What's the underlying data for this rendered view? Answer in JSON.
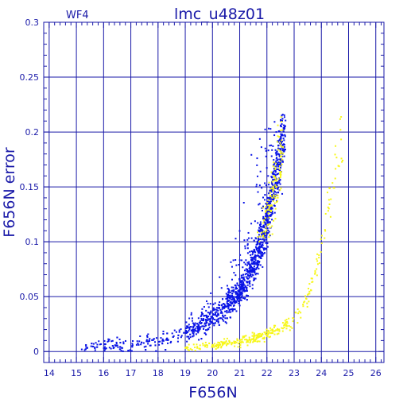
{
  "chart_data": {
    "type": "scatter",
    "title": "lmc_u48z01",
    "panel_label": "WF4",
    "xlabel": "F656N",
    "ylabel": "F656N error",
    "xlim": [
      13.8,
      26.3
    ],
    "ylim": [
      -0.01,
      0.3
    ],
    "grid": true,
    "x_ticks": [
      "14",
      "15",
      "16",
      "17",
      "18",
      "19",
      "20",
      "21",
      "22",
      "23",
      "24",
      "25",
      "26"
    ],
    "y_ticks": [
      "0",
      "0.05",
      "0.1",
      "0.15",
      "0.2",
      "0.25",
      "0.3"
    ],
    "colors": {
      "frame": "#1a1aa8",
      "series_blue": "#0a14e6",
      "series_yellow": "#f7f71a"
    },
    "series": [
      {
        "color": "#0a14e6",
        "trend": {
          "x": [
            15.2,
            16.0,
            17.0,
            18.0,
            19.0,
            19.5,
            20.0,
            20.5,
            21.0,
            21.3,
            21.6,
            21.9,
            22.2,
            22.5,
            22.7
          ],
          "y": [
            0.002,
            0.004,
            0.006,
            0.01,
            0.017,
            0.023,
            0.03,
            0.04,
            0.055,
            0.068,
            0.085,
            0.108,
            0.14,
            0.18,
            0.215
          ]
        }
      },
      {
        "color": "#f7f71a",
        "trend": {
          "x": [
            19.0,
            20.0,
            21.0,
            21.8,
            22.4,
            22.8,
            23.2,
            23.5,
            23.8,
            24.1,
            24.4,
            24.8
          ],
          "y": [
            0.003,
            0.005,
            0.009,
            0.014,
            0.02,
            0.026,
            0.035,
            0.05,
            0.075,
            0.11,
            0.15,
            0.19
          ]
        }
      }
    ]
  }
}
